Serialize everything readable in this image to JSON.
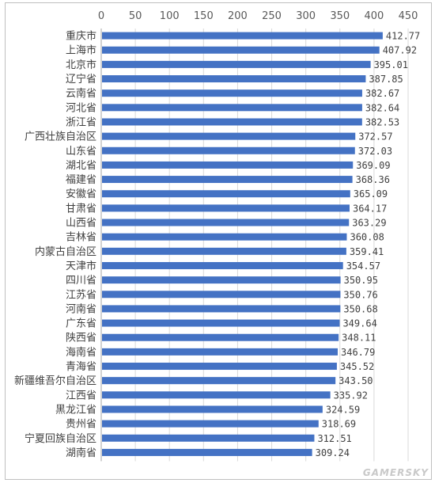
{
  "chart_data": {
    "type": "bar",
    "orientation": "horizontal",
    "xlim": [
      0,
      450
    ],
    "xticks": [
      "0",
      "50",
      "100",
      "150",
      "200",
      "250",
      "300",
      "350",
      "400",
      "450"
    ],
    "grid": true,
    "bar_color": "#4472c4",
    "categories": [
      "重庆市",
      "上海市",
      "北京市",
      "辽宁省",
      "云南省",
      "河北省",
      "浙江省",
      "广西壮族自治区",
      "山东省",
      "湖北省",
      "福建省",
      "安徽省",
      "甘肃省",
      "山西省",
      "吉林省",
      "内蒙古自治区",
      "天津市",
      "四川省",
      "江苏省",
      "河南省",
      "广东省",
      "陕西省",
      "海南省",
      "青海省",
      "新疆维吾尔自治区",
      "江西省",
      "黑龙江省",
      "贵州省",
      "宁夏回族自治区",
      "湖南省"
    ],
    "values": [
      412.77,
      407.92,
      395.01,
      387.85,
      382.67,
      382.64,
      382.53,
      372.57,
      372.03,
      369.09,
      368.36,
      365.09,
      364.17,
      363.29,
      360.08,
      359.41,
      354.57,
      350.95,
      350.76,
      350.68,
      349.64,
      348.11,
      346.79,
      345.52,
      343.5,
      335.92,
      324.59,
      318.69,
      312.51,
      309.24
    ],
    "value_labels": [
      "412.77",
      "407.92",
      "395.01",
      "387.85",
      "382.67",
      "382.64",
      "382.53",
      "372.57",
      "372.03",
      "369.09",
      "368.36",
      "365.09",
      "364.17",
      "363.29",
      "360.08",
      "359.41",
      "354.57",
      "350.95",
      "350.76",
      "350.68",
      "349.64",
      "348.11",
      "346.79",
      "345.52",
      "343.50",
      "335.92",
      "324.59",
      "318.69",
      "312.51",
      "309.24"
    ]
  },
  "watermark": "GAMERSKY"
}
